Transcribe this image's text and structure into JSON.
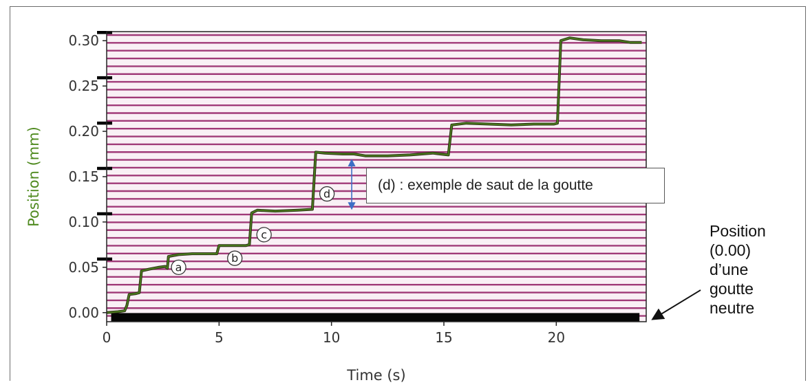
{
  "chart_data": {
    "type": "line",
    "xlabel": "Time (s)",
    "ylabel": "Position (mm)",
    "xlim": [
      0,
      24
    ],
    "ylim": [
      -0.01,
      0.31
    ],
    "xticks": [
      "0",
      "5",
      "10",
      "15",
      "20"
    ],
    "yticks": [
      "0.00",
      "0.05",
      "0.10",
      "0.15",
      "0.20",
      "0.25",
      "0.30"
    ],
    "grid": "horizontal",
    "colors": {
      "line": "#4a7a1e",
      "grid": "#a03a78",
      "ylabel": "#4f8a1f"
    },
    "series": [
      {
        "values": [
          [
            0.0,
            0.0
          ],
          [
            0.5,
            0.001
          ],
          [
            0.8,
            0.002
          ],
          [
            0.9,
            0.008
          ],
          [
            1.0,
            0.02
          ],
          [
            1.3,
            0.021
          ],
          [
            1.45,
            0.022
          ],
          [
            1.55,
            0.046
          ],
          [
            1.9,
            0.048
          ],
          [
            2.3,
            0.05
          ],
          [
            2.6,
            0.051
          ],
          [
            2.7,
            0.049
          ],
          [
            2.75,
            0.062
          ],
          [
            3.2,
            0.064
          ],
          [
            3.8,
            0.065
          ],
          [
            4.5,
            0.065
          ],
          [
            4.9,
            0.065
          ],
          [
            5.0,
            0.074
          ],
          [
            5.5,
            0.074
          ],
          [
            6.2,
            0.074
          ],
          [
            6.35,
            0.075
          ],
          [
            6.45,
            0.11
          ],
          [
            6.7,
            0.113
          ],
          [
            7.5,
            0.112
          ],
          [
            8.5,
            0.113
          ],
          [
            9.15,
            0.114
          ],
          [
            9.3,
            0.177
          ],
          [
            9.7,
            0.176
          ],
          [
            10.5,
            0.175
          ],
          [
            11.0,
            0.175
          ],
          [
            11.5,
            0.173
          ],
          [
            12.5,
            0.173
          ],
          [
            13.5,
            0.174
          ],
          [
            14.5,
            0.176
          ],
          [
            15.2,
            0.174
          ],
          [
            15.35,
            0.207
          ],
          [
            16.0,
            0.209
          ],
          [
            17.0,
            0.208
          ],
          [
            18.0,
            0.207
          ],
          [
            19.0,
            0.208
          ],
          [
            19.9,
            0.208
          ],
          [
            20.05,
            0.209
          ],
          [
            20.2,
            0.3
          ],
          [
            20.6,
            0.303
          ],
          [
            21.2,
            0.301
          ],
          [
            22.0,
            0.3
          ],
          [
            22.8,
            0.3
          ],
          [
            23.3,
            0.298
          ],
          [
            23.8,
            0.298
          ]
        ]
      }
    ],
    "annotations": [
      {
        "label": "a",
        "x": 3.2,
        "y": 0.05
      },
      {
        "label": "b",
        "x": 5.7,
        "y": 0.06
      },
      {
        "label": "c",
        "x": 7.0,
        "y": 0.086
      },
      {
        "label": "d",
        "x": 9.8,
        "y": 0.131
      }
    ],
    "arrow_range": {
      "x": 10.9,
      "y_from": 0.113,
      "y_to": 0.17
    },
    "callout_text": "(d) : exemple de saut de la goutte",
    "baseline_bar": {
      "y": -0.005,
      "x_from": 0.2,
      "x_to": 23.7
    }
  },
  "side_note": {
    "lines": [
      "Position",
      "(0.00)",
      "d’une",
      "goutte",
      "neutre"
    ]
  }
}
